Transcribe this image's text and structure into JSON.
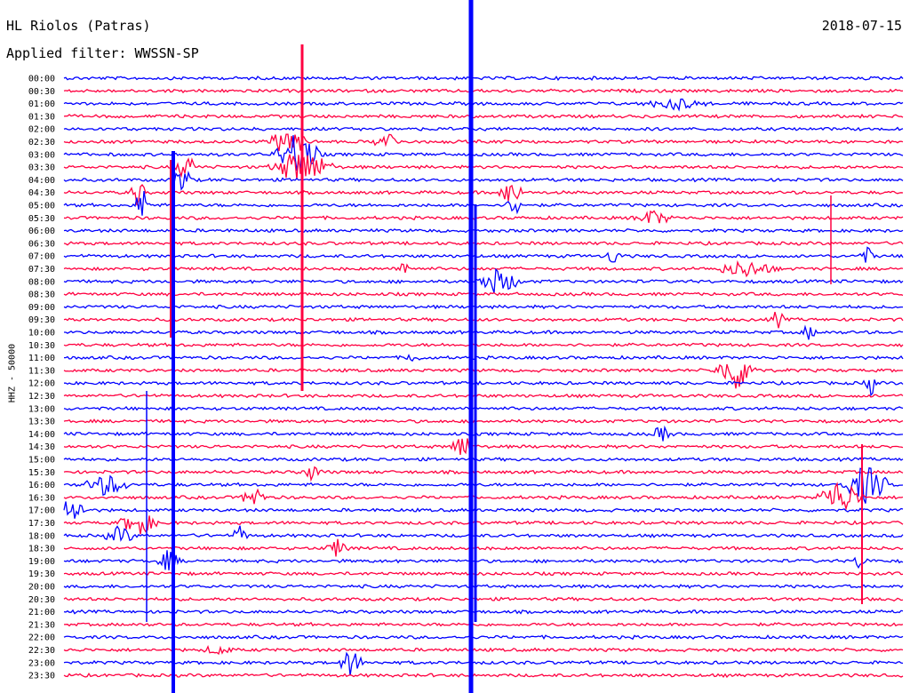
{
  "header": {
    "station": "HL Riolos (Patras)",
    "date": "2018-07-15",
    "filter_text": "Applied filter: WWSSN-SP"
  },
  "chart_data": {
    "type": "line",
    "subtype": "helicorder",
    "ylabel": "HHZ - 50000",
    "colors": [
      "#0000ff",
      "#ff0040"
    ],
    "row_labels": [
      "00:00",
      "00:30",
      "01:00",
      "01:30",
      "02:00",
      "02:30",
      "03:00",
      "03:30",
      "04:00",
      "04:30",
      "05:00",
      "05:30",
      "06:00",
      "06:30",
      "07:00",
      "07:30",
      "08:00",
      "08:30",
      "09:00",
      "09:30",
      "10:00",
      "10:30",
      "11:00",
      "11:30",
      "12:00",
      "12:30",
      "13:00",
      "13:30",
      "14:00",
      "14:30",
      "15:00",
      "15:30",
      "16:00",
      "16:30",
      "17:00",
      "17:30",
      "18:00",
      "18:30",
      "19:00",
      "19:30",
      "20:00",
      "20:30",
      "21:00",
      "21:30",
      "22:00",
      "22:30",
      "23:00",
      "23:30"
    ]
  }
}
